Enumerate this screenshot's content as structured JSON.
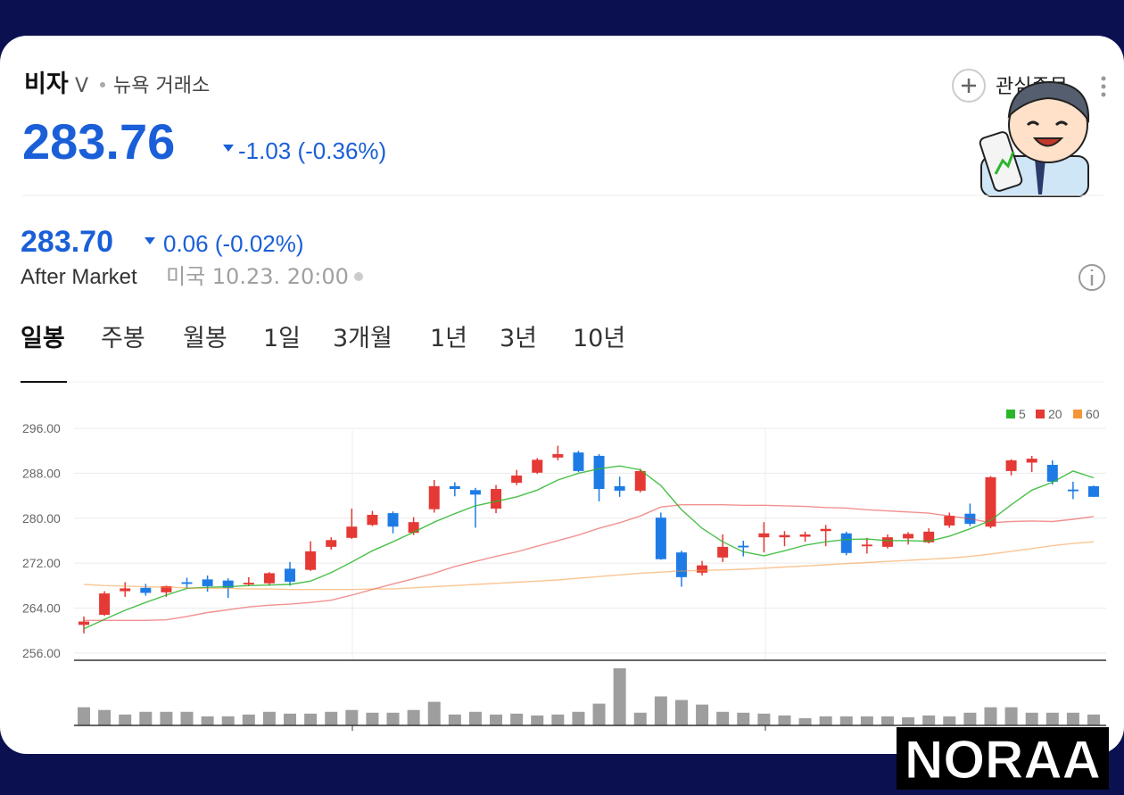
{
  "header": {
    "name": "비자",
    "ticker": "V",
    "exchange": "뉴욕 거래소",
    "price": "283.76",
    "change": "-1.03 (-0.36%)",
    "watchlist": "관심종목"
  },
  "after_market": {
    "price": "283.70",
    "change": "0.06 (-0.02%)",
    "label": "After Market",
    "time": "미국 10.23. 20:00"
  },
  "tabs": [
    "일봉",
    "주봉",
    "월봉",
    "1일",
    "3개월",
    "1년",
    "3년",
    "10년"
  ],
  "chart_data": {
    "type": "candlestick",
    "up_color": "#e53935",
    "down_color": "#1e7be6",
    "volume_color": "#9e9e9e",
    "grid": true,
    "legend": "top-right",
    "ylim": [
      254.7,
      297.6
    ],
    "yticks": [
      {
        "value": 256,
        "label": "256.00"
      },
      {
        "value": 264,
        "label": "264.00"
      },
      {
        "value": 272,
        "label": "272.00"
      },
      {
        "value": 280,
        "label": "280.00"
      },
      {
        "value": 288,
        "label": "288.00"
      },
      {
        "value": 296,
        "label": "296.00"
      }
    ],
    "open": [
      261.0,
      262.8,
      267.0,
      267.6,
      266.8,
      268.6,
      269.1,
      268.9,
      268.2,
      268.4,
      271.0,
      270.8,
      274.9,
      276.5,
      278.8,
      280.9,
      277.4,
      281.6,
      285.7,
      285.0,
      281.7,
      286.3,
      288.1,
      290.8,
      291.7,
      291.1,
      285.7,
      284.9,
      280.1,
      273.9,
      270.3,
      273.0,
      275.1,
      276.6,
      276.6,
      276.7,
      277.7,
      277.3,
      275.0,
      274.9,
      276.4,
      275.7,
      278.7,
      280.8,
      278.5,
      288.4,
      289.9,
      289.5,
      285.1,
      285.7
    ],
    "high": [
      262.5,
      267.0,
      268.6,
      268.3,
      268.0,
      269.4,
      269.8,
      269.3,
      269.5,
      270.4,
      272.2,
      275.9,
      276.6,
      281.7,
      281.3,
      281.2,
      280.2,
      286.8,
      286.4,
      285.4,
      285.9,
      288.6,
      290.7,
      292.9,
      292.0,
      291.4,
      287.4,
      288.8,
      281.0,
      274.2,
      272.4,
      277.1,
      276.0,
      279.3,
      277.7,
      277.6,
      278.8,
      277.6,
      276.5,
      277.1,
      277.5,
      278.2,
      281.0,
      282.6,
      287.5,
      290.5,
      291.1,
      290.3,
      286.5,
      285.8
    ],
    "low": [
      259.5,
      262.6,
      266.0,
      266.2,
      266.0,
      267.5,
      266.9,
      265.8,
      267.9,
      268.0,
      268.0,
      270.6,
      274.4,
      276.3,
      278.6,
      277.3,
      277.0,
      281.0,
      283.9,
      278.3,
      280.9,
      285.9,
      287.9,
      290.3,
      288.2,
      283.0,
      283.8,
      284.6,
      272.6,
      267.8,
      269.8,
      272.2,
      273.2,
      273.9,
      275.0,
      275.8,
      275.0,
      273.4,
      273.7,
      274.6,
      275.3,
      275.5,
      278.3,
      278.6,
      278.2,
      287.6,
      288.2,
      286.0,
      283.4,
      283.8
    ],
    "close": [
      261.6,
      266.6,
      267.5,
      266.7,
      267.9,
      268.3,
      267.9,
      267.6,
      268.5,
      270.2,
      268.7,
      274.1,
      276.1,
      278.5,
      280.6,
      278.5,
      279.3,
      285.7,
      285.2,
      284.2,
      285.2,
      287.6,
      290.4,
      291.4,
      288.4,
      285.2,
      284.9,
      288.4,
      272.7,
      269.5,
      271.6,
      274.9,
      274.8,
      277.3,
      277.0,
      277.1,
      278.1,
      273.8,
      275.3,
      276.6,
      277.2,
      277.6,
      280.4,
      279.0,
      287.3,
      290.3,
      290.6,
      286.5,
      284.8,
      283.8
    ],
    "ma": [
      {
        "name": "5",
        "color": "#2bb52b",
        "values": [
          260.3,
          262.0,
          263.6,
          265.0,
          266.3,
          267.5,
          267.7,
          267.8,
          268.0,
          268.1,
          268.2,
          268.8,
          270.3,
          272.2,
          274.2,
          275.8,
          277.5,
          279.3,
          280.8,
          282.2,
          283.0,
          283.8,
          285.0,
          286.8,
          288.0,
          288.8,
          289.3,
          288.6,
          285.8,
          281.5,
          278.2,
          275.8,
          274.0,
          273.3,
          274.2,
          275.2,
          275.8,
          276.2,
          276.3,
          276.0,
          276.0,
          275.9,
          276.8,
          278.1,
          279.6,
          282.4,
          285.0,
          286.4,
          288.4,
          287.2
        ]
      },
      {
        "name": "20",
        "color": "#e53935",
        "values": [
          261.8,
          261.8,
          261.8,
          261.8,
          261.9,
          262.5,
          263.2,
          263.7,
          264.2,
          264.5,
          264.7,
          265.0,
          265.4,
          266.3,
          267.3,
          268.3,
          269.2,
          270.2,
          271.4,
          272.3,
          273.2,
          274.0,
          275.0,
          276.0,
          277.0,
          278.2,
          279.2,
          280.4,
          282.0,
          282.4,
          282.4,
          282.4,
          282.3,
          282.3,
          282.2,
          282.1,
          281.9,
          281.8,
          281.5,
          281.3,
          281.1,
          280.9,
          280.4,
          279.9,
          279.2,
          279.4,
          279.5,
          279.4,
          279.8,
          280.3
        ]
      },
      {
        "name": "60",
        "color": "#f5953a",
        "values": [
          268.2,
          268.0,
          267.9,
          267.8,
          267.7,
          267.6,
          267.5,
          267.5,
          267.4,
          267.4,
          267.3,
          267.3,
          267.3,
          267.3,
          267.4,
          267.4,
          267.6,
          267.8,
          268.0,
          268.2,
          268.4,
          268.6,
          268.8,
          269.0,
          269.3,
          269.6,
          269.9,
          270.2,
          270.4,
          270.6,
          270.7,
          270.8,
          270.9,
          271.1,
          271.3,
          271.5,
          271.7,
          271.9,
          272.1,
          272.3,
          272.5,
          272.7,
          272.9,
          273.2,
          273.6,
          274.1,
          274.6,
          275.1,
          275.5,
          275.8
        ]
      }
    ],
    "volume": [
      20,
      17,
      12,
      15,
      15,
      15,
      10,
      10,
      12,
      15,
      13,
      13,
      15,
      17,
      14,
      14,
      17,
      26,
      12,
      15,
      12,
      13,
      11,
      12,
      15,
      24,
      63,
      14,
      32,
      28,
      23,
      15,
      14,
      13,
      11,
      8,
      10,
      10,
      10,
      10,
      9,
      11,
      10,
      14,
      20,
      20,
      14,
      14,
      14,
      12
    ]
  },
  "watermark": "NORAA"
}
